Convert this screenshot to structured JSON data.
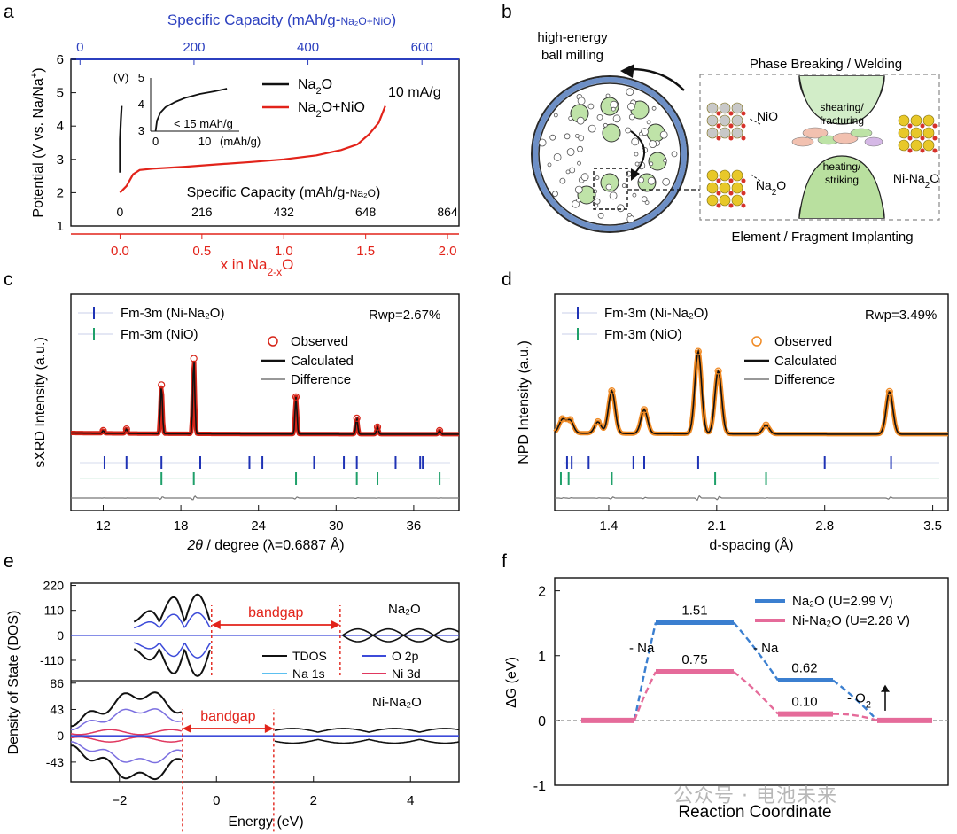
{
  "watermark": "公众号 · 电池未来",
  "chart_data": [
    {
      "panel": "a",
      "type": "line",
      "top_axis": {
        "label": "Specific Capacity  (mAh/g-Na2O+NiO)",
        "ticks": [
          0,
          200,
          400,
          600
        ],
        "range": [
          -16,
          665
        ]
      },
      "inner_axis": {
        "label": "Specific Capacity  (mAh/g-Na2O)",
        "ticks": [
          0,
          216,
          432,
          648,
          864
        ]
      },
      "xlabel": "x in Na2-xO",
      "ylabel": "Potential (V vs. Na/Na+)",
      "xlim": [
        -0.3,
        2.07
      ],
      "ylim": [
        1,
        6
      ],
      "xticks": [
        0.0,
        0.5,
        1.0,
        1.5,
        2.0
      ],
      "yticks": [
        1,
        2,
        3,
        4,
        5,
        6
      ],
      "annotation": "10 mA/g",
      "series": [
        {
          "name": "Na2O",
          "color": "#111111",
          "x": [
            0.0,
            0.0,
            0.005,
            0.01
          ],
          "y": [
            2.6,
            3.6,
            4.2,
            4.6
          ]
        },
        {
          "name": "Na2O+NiO",
          "color": "#e2231a",
          "x": [
            0.0,
            0.04,
            0.08,
            0.12,
            0.2,
            0.4,
            0.6,
            0.8,
            1.0,
            1.2,
            1.35,
            1.45,
            1.52,
            1.58,
            1.62
          ],
          "y": [
            2.0,
            2.2,
            2.55,
            2.68,
            2.72,
            2.78,
            2.85,
            2.92,
            3.0,
            3.12,
            3.28,
            3.45,
            3.75,
            4.1,
            4.6
          ]
        }
      ],
      "inset": {
        "ylabel": "(V)",
        "xlabel": "(mAh/g)",
        "xticks": [
          0,
          10
        ],
        "yticks": [
          3,
          4,
          5
        ],
        "xlim": [
          -1,
          17
        ],
        "ylim": [
          3,
          5
        ],
        "note": "< 15 mAh/g",
        "x": [
          0,
          0.3,
          1,
          2,
          4,
          6,
          9,
          12,
          14.5
        ],
        "y": [
          3.0,
          3.4,
          3.7,
          3.9,
          4.1,
          4.25,
          4.4,
          4.5,
          4.6
        ]
      }
    },
    {
      "panel": "b",
      "type": "diagram",
      "labels": {
        "milling": "high-energy ball milling",
        "top": "Phase Breaking / Welding",
        "bottom": "Element / Fragment Implanting",
        "nio": "NiO",
        "na2o": "Na2O",
        "product": "Ni-Na2O",
        "shearing": "shearing/ fracturing",
        "heating": "heating/ striking"
      }
    },
    {
      "panel": "c",
      "type": "line",
      "xlabel": "2θ / degree (λ=0.6887 Å)",
      "ylabel": "sXRD Intensity (a.u.)",
      "xlim": [
        9.5,
        39.5
      ],
      "xticks": [
        12,
        18,
        24,
        30,
        36
      ],
      "rwp": "Rwp=2.67%",
      "legend": [
        "Fm-3m (Ni-Na2O)",
        "Fm-3m (NiO)",
        "Observed",
        "Calculated",
        "Difference"
      ],
      "peaks": [
        [
          12.0,
          0.03
        ],
        [
          13.8,
          0.05
        ],
        [
          16.5,
          0.55
        ],
        [
          19.0,
          0.85
        ],
        [
          26.9,
          0.42
        ],
        [
          31.6,
          0.18
        ],
        [
          33.2,
          0.08
        ],
        [
          38.0,
          0.04
        ]
      ],
      "ticks_ni_na2o": [
        12.1,
        13.8,
        16.5,
        19.5,
        23.3,
        24.3,
        28.3,
        30.6,
        31.6,
        34.6,
        36.5,
        36.7
      ],
      "ticks_nio": [
        16.5,
        19.0,
        26.9,
        31.6,
        33.2,
        38.0
      ]
    },
    {
      "panel": "d",
      "type": "line",
      "xlabel": "d-spacing (Å)",
      "ylabel": "NPD Intensity (a.u.)",
      "xlim": [
        1.05,
        3.6
      ],
      "xticks": [
        1.4,
        2.1,
        2.8,
        3.5
      ],
      "rwp": "Rwp=3.49%",
      "legend": [
        "Fm-3m (Ni-Na2O)",
        "Fm-3m (NiO)",
        "Observed",
        "Calculated",
        "Difference"
      ],
      "peaks": [
        [
          1.1,
          0.15
        ],
        [
          1.15,
          0.14
        ],
        [
          1.33,
          0.13
        ],
        [
          1.42,
          0.48
        ],
        [
          1.63,
          0.27
        ],
        [
          1.98,
          0.93
        ],
        [
          2.11,
          0.71
        ],
        [
          2.42,
          0.1
        ],
        [
          3.22,
          0.48
        ]
      ],
      "ticks_ni_na2o": [
        1.13,
        1.16,
        1.27,
        1.56,
        1.63,
        1.98,
        2.8,
        3.23
      ],
      "ticks_nio": [
        1.09,
        1.14,
        1.42,
        2.09,
        2.42
      ]
    },
    {
      "panel": "e",
      "type": "line",
      "xlabel": "Energy (eV)",
      "ylabel": "Density of State (DOS)",
      "xlim": [
        -3,
        5
      ],
      "xticks": [
        -2,
        0,
        2,
        4
      ],
      "top": {
        "title": "Na2O",
        "yticks": [
          220,
          110,
          0,
          -110
        ],
        "ylim": [
          -200,
          230
        ],
        "bandgap": [
          -0.1,
          2.55
        ]
      },
      "bottom": {
        "title": "Ni-Na2O",
        "yticks": [
          86,
          43,
          0,
          -43
        ],
        "ylim": [
          -75,
          90
        ],
        "bandgap": [
          -0.7,
          1.18
        ]
      },
      "bandgap_label": "bandgap",
      "legend": [
        {
          "name": "TDOS",
          "color": "#111111"
        },
        {
          "name": "O 2p",
          "color": "#3d4bd9"
        },
        {
          "name": "Na 1s",
          "color": "#5cc0f0"
        },
        {
          "name": "Ni 3d",
          "color": "#e0385f"
        }
      ]
    },
    {
      "panel": "f",
      "type": "line",
      "xlabel": "Reaction Coordinate",
      "ylabel": "ΔG (eV)",
      "ylim": [
        -1,
        2.2
      ],
      "yticks": [
        -1,
        0,
        1,
        2
      ],
      "series": [
        {
          "name": "Na2O (U=2.99 V)",
          "color": "#3b7fd0",
          "values": [
            0,
            1.51,
            0.62,
            0
          ]
        },
        {
          "name": "Ni-Na2O (U=2.28 V)",
          "color": "#e56b9a",
          "values": [
            0,
            0.75,
            0.1,
            0
          ]
        }
      ],
      "value_labels": [
        "1.51",
        "0.75",
        "0.62",
        "0.10"
      ],
      "step_labels": [
        "- Na",
        "- Na",
        "- O2"
      ]
    }
  ]
}
